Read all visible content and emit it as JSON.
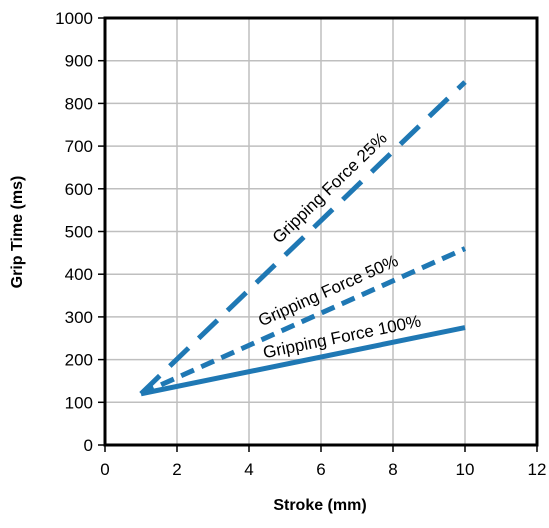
{
  "chart_data": {
    "type": "line",
    "title": "",
    "xlabel": "Stroke (mm)",
    "ylabel": "Grip Time (ms)",
    "xlim": [
      0,
      12
    ],
    "ylim": [
      0,
      1000
    ],
    "xticks": [
      0,
      2,
      4,
      6,
      8,
      10,
      12
    ],
    "yticks": [
      0,
      100,
      200,
      300,
      400,
      500,
      600,
      700,
      800,
      900,
      1000
    ],
    "grid": true,
    "legend": "none (series labelled inline)",
    "series": [
      {
        "name": "Gripping Force 25%",
        "style": "long-dash",
        "color": "#1F78B4",
        "x": [
          1,
          10
        ],
        "y": [
          120,
          850
        ]
      },
      {
        "name": "Gripping Force 50%",
        "style": "short-dash",
        "color": "#1F78B4",
        "x": [
          1,
          10
        ],
        "y": [
          120,
          460
        ]
      },
      {
        "name": "Gripping Force 100%",
        "style": "solid",
        "color": "#1F78B4",
        "x": [
          1,
          10
        ],
        "y": [
          120,
          275
        ]
      }
    ]
  }
}
